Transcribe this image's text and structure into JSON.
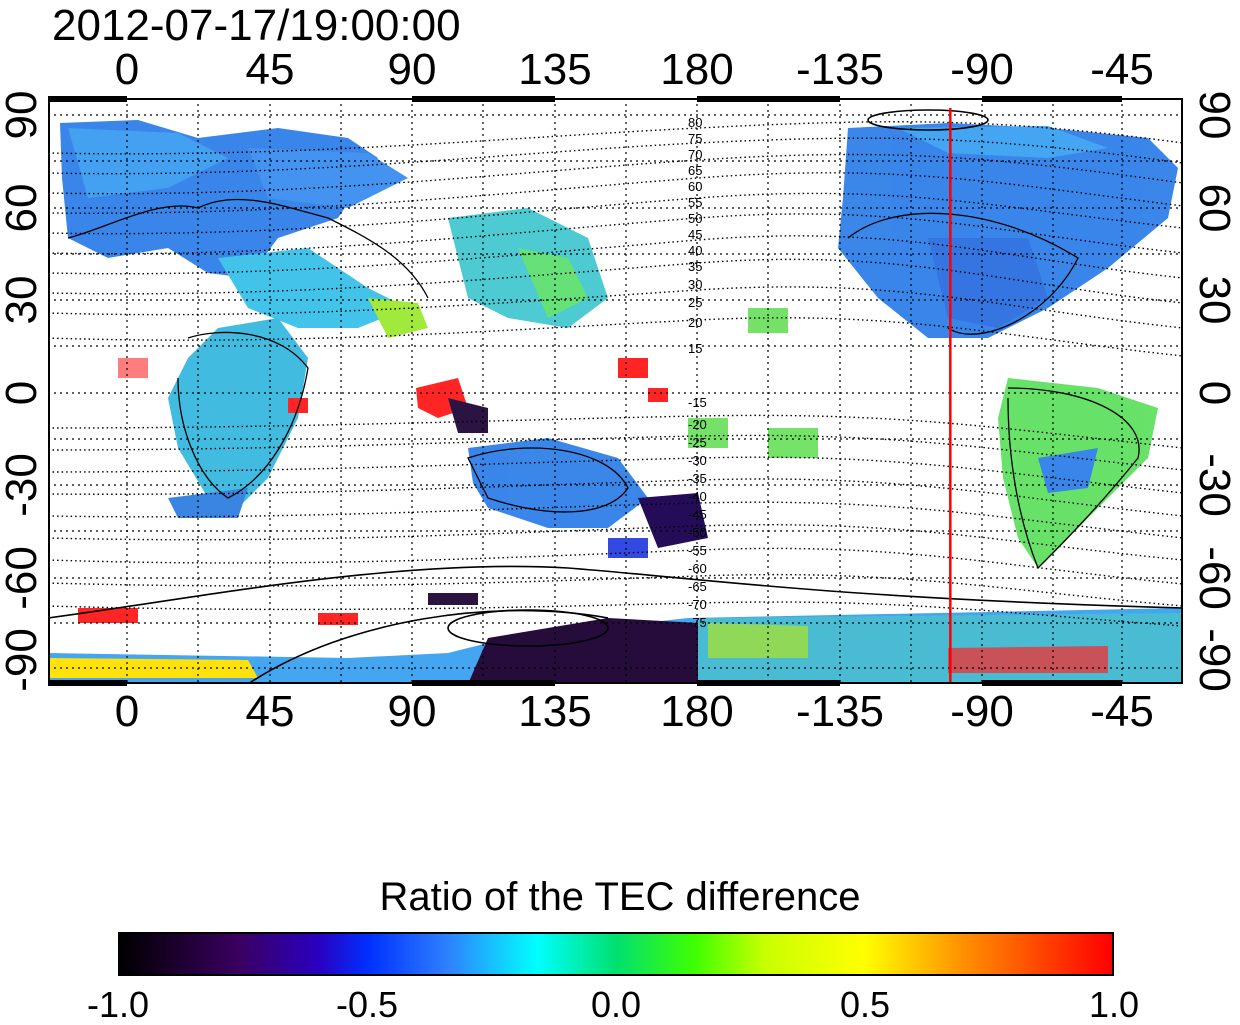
{
  "timestamp": "2012-07-17/19:00:00",
  "map": {
    "x_ticks": [
      "0",
      "45",
      "90",
      "135",
      "180",
      "-135",
      "-90",
      "-45"
    ],
    "y_ticks_left": [
      "90",
      "60",
      "30",
      "0",
      "-30",
      "-60",
      "-90"
    ],
    "y_ticks_right": [
      "90",
      "60",
      "30",
      "0",
      "-30",
      "-60",
      "-90"
    ],
    "magnetic_lat_labels_north": [
      "80",
      "75",
      "70",
      "65",
      "60",
      "55",
      "50",
      "45",
      "40",
      "35",
      "30",
      "25",
      "20",
      "15"
    ],
    "magnetic_lat_labels_south": [
      "-15",
      "-20",
      "-25",
      "-30",
      "-35",
      "-40",
      "-45",
      "-50",
      "-55",
      "-60",
      "-65",
      "-70",
      "-75"
    ],
    "marker_line_color": "#ff0000",
    "marker_longitude": -100
  },
  "colorbar": {
    "title": "Ratio of the TEC difference",
    "ticks": [
      "-1.0",
      "-0.5",
      "0.0",
      "0.5",
      "1.0"
    ],
    "range": [
      -1.0,
      1.0
    ],
    "colors": [
      "#000000",
      "#2a00c0",
      "#0030ff",
      "#00ffff",
      "#00e070",
      "#40ff00",
      "#ffff00",
      "#ff9000",
      "#ff0000"
    ]
  }
}
